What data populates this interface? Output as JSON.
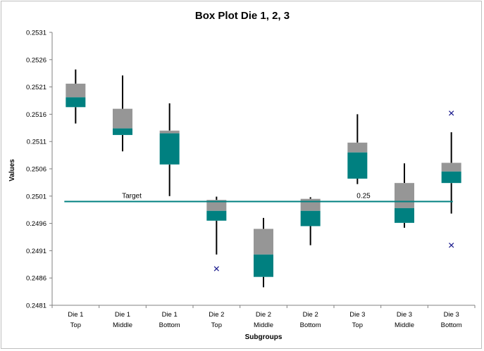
{
  "chart_data": {
    "type": "box",
    "title": "Box Plot  Die 1, 2, 3",
    "xlabel": "Subgroups",
    "ylabel": "Values",
    "ylim": [
      0.2481,
      0.2531
    ],
    "y_ticks": [
      "0.2481",
      "0.2486",
      "0.2491",
      "0.2496",
      "0.2501",
      "0.2506",
      "0.2511",
      "0.2516",
      "0.2521",
      "0.2526",
      "0.2531"
    ],
    "categories": [
      [
        "Die 1",
        "Top"
      ],
      [
        "Die 1",
        "Middle"
      ],
      [
        "Die 1",
        "Bottom"
      ],
      [
        "Die 2",
        "Top"
      ],
      [
        "Die 2",
        "Middle"
      ],
      [
        "Die 2",
        "Bottom"
      ],
      [
        "Die 3",
        "Top"
      ],
      [
        "Die 3",
        "Middle"
      ],
      [
        "Die 3",
        "Bottom"
      ]
    ],
    "boxes": [
      {
        "min": 0.25143,
        "q1": 0.25173,
        "median": 0.25191,
        "q3": 0.25216,
        "max": 0.25242,
        "outliers": []
      },
      {
        "min": 0.25092,
        "q1": 0.25122,
        "median": 0.25134,
        "q3": 0.2517,
        "max": 0.25231,
        "outliers": []
      },
      {
        "min": 0.2501,
        "q1": 0.25068,
        "median": 0.25125,
        "q3": 0.2513,
        "max": 0.2518,
        "outliers": []
      },
      {
        "min": 0.24903,
        "q1": 0.24965,
        "median": 0.24983,
        "q3": 0.25003,
        "max": 0.25009,
        "outliers": [
          0.24877
        ]
      },
      {
        "min": 0.24843,
        "q1": 0.24862,
        "median": 0.24903,
        "q3": 0.2495,
        "max": 0.2497,
        "outliers": []
      },
      {
        "min": 0.2492,
        "q1": 0.24955,
        "median": 0.24983,
        "q3": 0.25005,
        "max": 0.25008,
        "outliers": []
      },
      {
        "min": 0.25032,
        "q1": 0.25042,
        "median": 0.2509,
        "q3": 0.25108,
        "max": 0.2516,
        "outliers": []
      },
      {
        "min": 0.24952,
        "q1": 0.24961,
        "median": 0.24988,
        "q3": 0.25034,
        "max": 0.2507,
        "outliers": []
      },
      {
        "min": 0.24978,
        "q1": 0.25034,
        "median": 0.25055,
        "q3": 0.25071,
        "max": 0.25127,
        "outliers": [
          0.25162,
          0.2492
        ]
      }
    ],
    "target": {
      "label": "Target",
      "value_label": "0.25",
      "value": 0.25
    },
    "colors": {
      "lower_box": "#008080",
      "upper_box": "#969696",
      "whisker": "#000000",
      "target_line": "#008080",
      "outlier": "#1f1f8f"
    },
    "grid": false,
    "legend": "none"
  }
}
